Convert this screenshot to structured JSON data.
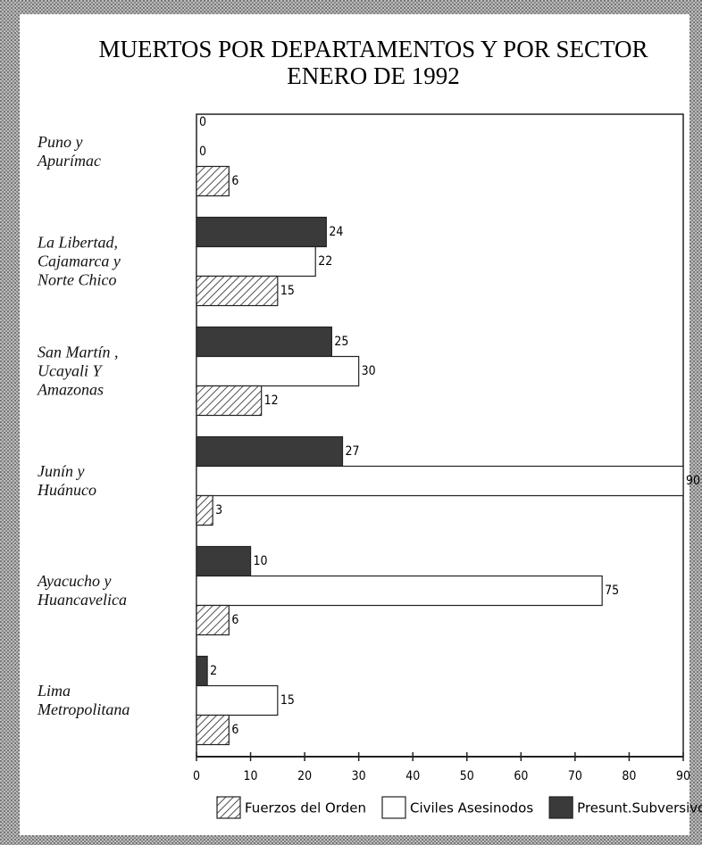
{
  "chart_data": {
    "type": "hbar",
    "title": "MUERTOS POR DEPARTAMENTOS Y POR SECTOR",
    "subtitle": "ENERO DE 1992",
    "categories": [
      "Puno y\nApurímac",
      "La Libertad,\nCajamarca y\nNorte Chico",
      "San Martín ,\nUcayali Y\nAmazonas",
      "Junín y\nHuánuco",
      "Ayacucho y\nHuancavelica",
      "Lima\nMetropolitana"
    ],
    "series": [
      {
        "name": "Presunt.Subversivos",
        "color": "#3a3a3a",
        "values": [
          0,
          24,
          25,
          27,
          10,
          2
        ]
      },
      {
        "name": "Civiles Asesinodos",
        "color": "#ffffff",
        "values": [
          0,
          22,
          30,
          90,
          75,
          15
        ]
      },
      {
        "name": "Fuerzos del Orden",
        "color": "hatch",
        "values": [
          6,
          15,
          12,
          3,
          6,
          6
        ]
      }
    ],
    "legend_order": [
      2,
      1,
      0
    ],
    "xlim": [
      0,
      90
    ],
    "xticks": [
      0,
      10,
      20,
      30,
      40,
      50,
      60,
      70,
      80,
      90
    ]
  }
}
